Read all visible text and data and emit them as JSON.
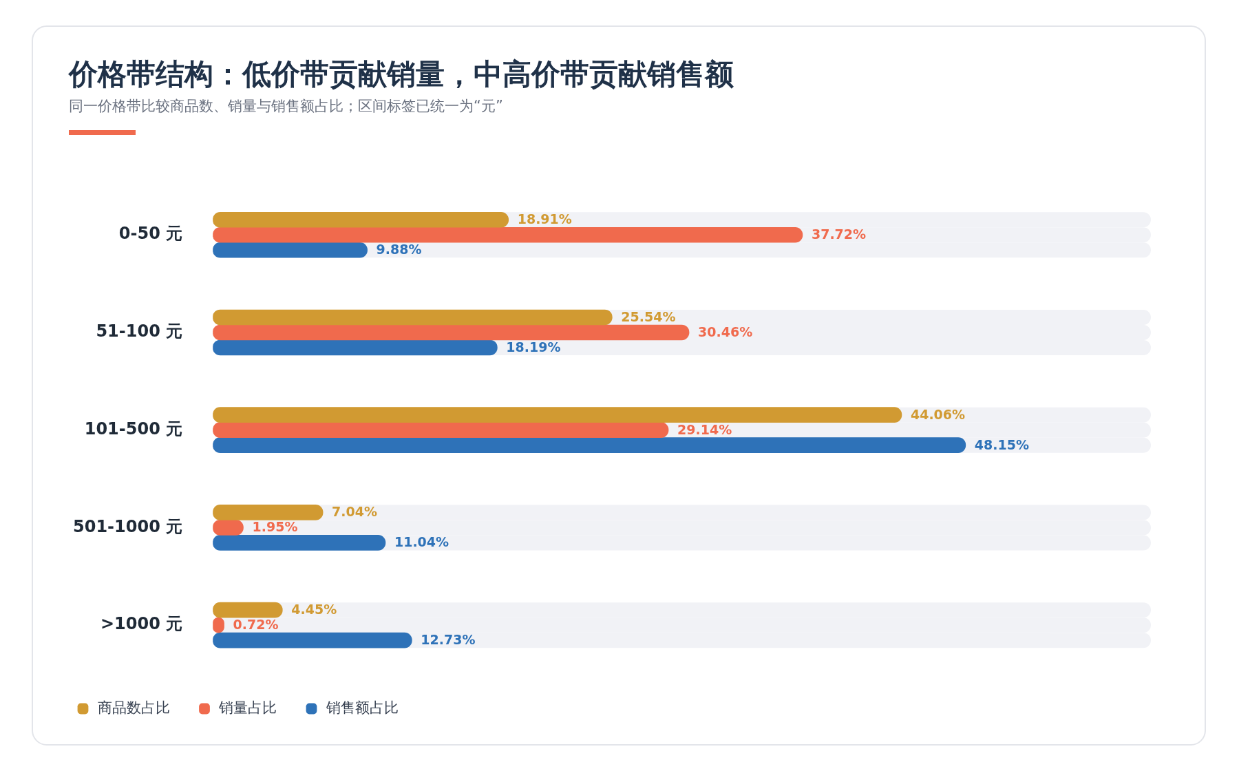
{
  "chart_data": {
    "type": "bar",
    "orientation": "horizontal",
    "title": "价格带结构：低价带贡献销量，中高价带贡献销售额",
    "subtitle": "同一价格带比较商品数、销量与销售额占比；区间标签已统一为“元”",
    "categories": [
      "0-50 元",
      "51-100 元",
      "101-500 元",
      "501-1000 元",
      ">1000 元"
    ],
    "series": [
      {
        "name": "商品数占比",
        "color": "#d19a32",
        "values": [
          18.91,
          25.54,
          44.06,
          7.04,
          4.45
        ],
        "value_labels": [
          "18.91%",
          "25.54%",
          "44.06%",
          "7.04%",
          "4.45%"
        ]
      },
      {
        "name": "销量占比",
        "color": "#f06a4d",
        "values": [
          37.72,
          30.46,
          29.14,
          1.95,
          0.72
        ],
        "value_labels": [
          "37.72%",
          "30.46%",
          "29.14%",
          "1.95%",
          "0.72%"
        ]
      },
      {
        "name": "销售额占比",
        "color": "#2e72b8",
        "values": [
          9.88,
          18.19,
          48.15,
          11.04,
          12.73
        ],
        "value_labels": [
          "9.88%",
          "18.19%",
          "48.15%",
          "11.04%",
          "12.73%"
        ]
      }
    ],
    "legend": "bottom left"
  }
}
